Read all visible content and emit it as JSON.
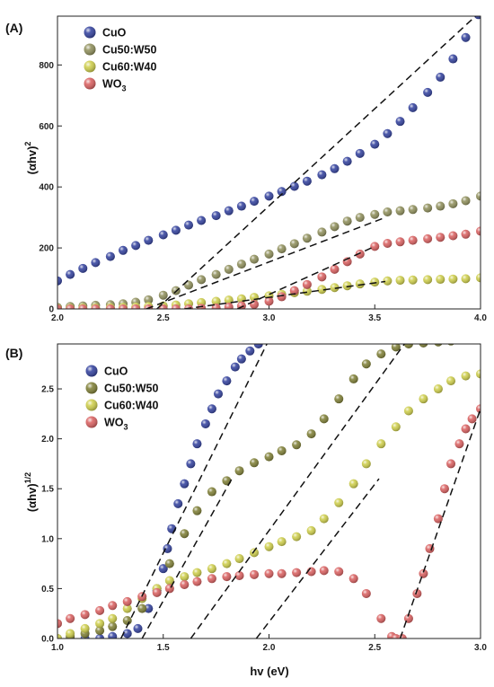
{
  "chart_data": [
    {
      "type": "scatter",
      "panel_label": "(A)",
      "xlabel": "",
      "ylabel": "(αhv)",
      "ylabel_sup": "2",
      "xlim": [
        2.0,
        4.0
      ],
      "ylim": [
        0,
        960
      ],
      "xticks": [
        2.0,
        2.5,
        3.0,
        3.5,
        4.0
      ],
      "yticks": [
        0,
        200,
        400,
        600,
        800
      ],
      "legend_position": "top-left",
      "series": [
        {
          "name": "CuO",
          "color": "#2b3a9a",
          "x": [
            2.0,
            2.06,
            2.12,
            2.18,
            2.25,
            2.31,
            2.37,
            2.43,
            2.5,
            2.56,
            2.62,
            2.68,
            2.75,
            2.81,
            2.87,
            2.93,
            3.0,
            3.06,
            3.12,
            3.18,
            3.25,
            3.31,
            3.37,
            3.43,
            3.5,
            3.56,
            3.62,
            3.68,
            3.75,
            3.81,
            3.87,
            3.93,
            3.99
          ],
          "y": [
            92,
            113,
            133,
            152,
            172,
            192,
            208,
            225,
            243,
            258,
            275,
            290,
            306,
            322,
            337,
            353,
            370,
            385,
            402,
            419,
            440,
            460,
            484,
            510,
            540,
            575,
            615,
            660,
            710,
            760,
            820,
            890,
            965
          ]
        },
        {
          "name": "Cu50:W50",
          "color": "#8b8b55",
          "x": [
            2.0,
            2.06,
            2.12,
            2.18,
            2.25,
            2.31,
            2.37,
            2.43,
            2.5,
            2.56,
            2.62,
            2.68,
            2.75,
            2.81,
            2.87,
            2.93,
            3.0,
            3.06,
            3.12,
            3.18,
            3.25,
            3.31,
            3.37,
            3.43,
            3.5,
            3.56,
            3.62,
            3.68,
            3.75,
            3.81,
            3.87,
            3.93,
            4.0
          ],
          "y": [
            5,
            8,
            10,
            12,
            14,
            17,
            22,
            30,
            45,
            60,
            78,
            96,
            113,
            130,
            147,
            163,
            180,
            197,
            214,
            232,
            252,
            270,
            288,
            300,
            310,
            318,
            322,
            326,
            331,
            337,
            345,
            355,
            370
          ]
        },
        {
          "name": "Cu60:W40",
          "color": "#cccc44",
          "x": [
            2.0,
            2.06,
            2.12,
            2.18,
            2.25,
            2.31,
            2.37,
            2.43,
            2.5,
            2.56,
            2.62,
            2.68,
            2.75,
            2.81,
            2.87,
            2.93,
            3.0,
            3.06,
            3.12,
            3.18,
            3.25,
            3.31,
            3.37,
            3.43,
            3.5,
            3.56,
            3.62,
            3.68,
            3.75,
            3.81,
            3.87,
            3.93,
            4.0
          ],
          "y": [
            2,
            2,
            3,
            3,
            4,
            5,
            6,
            8,
            10,
            13,
            17,
            21,
            25,
            29,
            33,
            38,
            43,
            48,
            53,
            58,
            64,
            70,
            76,
            82,
            88,
            92,
            94,
            95,
            96,
            97,
            98,
            99,
            102
          ]
        },
        {
          "name": "WO3",
          "color": "#d85a5a",
          "x": [
            2.0,
            2.06,
            2.12,
            2.18,
            2.25,
            2.31,
            2.37,
            2.43,
            2.5,
            2.56,
            2.62,
            2.68,
            2.75,
            2.81,
            2.87,
            2.93,
            3.0,
            3.06,
            3.12,
            3.18,
            3.25,
            3.31,
            3.37,
            3.43,
            3.5,
            3.56,
            3.62,
            3.68,
            3.75,
            3.81,
            3.87,
            3.93,
            4.0
          ],
          "y": [
            0,
            0,
            0,
            0,
            0,
            0,
            0,
            0,
            0,
            0,
            0,
            2,
            3,
            6,
            10,
            15,
            25,
            40,
            60,
            80,
            105,
            130,
            155,
            180,
            205,
            215,
            220,
            225,
            230,
            235,
            240,
            245,
            255
          ]
        }
      ],
      "fit_lines": [
        {
          "x": [
            2.47,
            4.0
          ],
          "y": [
            0,
            975
          ]
        },
        {
          "x": [
            2.42,
            3.55
          ],
          "y": [
            0,
            300
          ]
        },
        {
          "x": [
            2.6,
            3.55
          ],
          "y": [
            0,
            90
          ]
        },
        {
          "x": [
            2.85,
            3.5
          ],
          "y": [
            0,
            205
          ]
        }
      ]
    },
    {
      "type": "scatter",
      "panel_label": "(B)",
      "xlabel": "hv (eV)",
      "ylabel": "(αhv)",
      "ylabel_sup": "1/2",
      "xlim": [
        1.0,
        3.0
      ],
      "ylim": [
        0,
        2.95
      ],
      "xticks": [
        1.0,
        1.5,
        2.0,
        2.5,
        3.0
      ],
      "yticks": [
        0.0,
        0.5,
        1.0,
        1.5,
        2.0,
        2.5
      ],
      "legend_position": "top-left",
      "series": [
        {
          "name": "CuO",
          "color": "#2b3a9a",
          "x": [
            1.06,
            1.13,
            1.2,
            1.26,
            1.33,
            1.38,
            1.43,
            1.47,
            1.5,
            1.52,
            1.54,
            1.57,
            1.6,
            1.63,
            1.66,
            1.7,
            1.73,
            1.76,
            1.8,
            1.84,
            1.87,
            1.91,
            1.95
          ],
          "y": [
            0.0,
            0.0,
            0.0,
            0.02,
            0.05,
            0.1,
            0.3,
            0.48,
            0.7,
            0.9,
            1.1,
            1.35,
            1.55,
            1.75,
            1.95,
            2.15,
            2.3,
            2.45,
            2.58,
            2.72,
            2.8,
            2.88,
            2.95
          ]
        },
        {
          "name": "Cu50:W50",
          "color": "#7a7a2e",
          "x": [
            1.0,
            1.06,
            1.13,
            1.2,
            1.26,
            1.33,
            1.4,
            1.47,
            1.53,
            1.6,
            1.66,
            1.73,
            1.8,
            1.86,
            1.93,
            2.0,
            2.06,
            2.13,
            2.2,
            2.26,
            2.33,
            2.4,
            2.46,
            2.53,
            2.6,
            2.66,
            2.73,
            2.8,
            2.86,
            2.93,
            3.0
          ],
          "y": [
            0.0,
            0.02,
            0.05,
            0.08,
            0.12,
            0.18,
            0.3,
            0.5,
            0.75,
            1.05,
            1.28,
            1.47,
            1.58,
            1.68,
            1.76,
            1.82,
            1.88,
            1.94,
            2.05,
            2.2,
            2.4,
            2.6,
            2.75,
            2.85,
            2.92,
            2.95,
            2.96,
            2.97,
            2.98,
            2.99,
            3.0
          ]
        },
        {
          "name": "Cu60:W40",
          "color": "#cccc44",
          "x": [
            1.0,
            1.06,
            1.13,
            1.2,
            1.26,
            1.33,
            1.4,
            1.47,
            1.53,
            1.6,
            1.66,
            1.73,
            1.8,
            1.86,
            1.93,
            2.0,
            2.06,
            2.13,
            2.2,
            2.26,
            2.33,
            2.4,
            2.46,
            2.53,
            2.6,
            2.66,
            2.73,
            2.8,
            2.86,
            2.93,
            3.0
          ],
          "y": [
            0.0,
            0.05,
            0.1,
            0.15,
            0.2,
            0.3,
            0.4,
            0.5,
            0.58,
            0.62,
            0.66,
            0.7,
            0.75,
            0.8,
            0.86,
            0.92,
            0.97,
            1.02,
            1.08,
            1.2,
            1.36,
            1.55,
            1.75,
            1.95,
            2.12,
            2.28,
            2.4,
            2.5,
            2.58,
            2.63,
            2.65
          ]
        },
        {
          "name": "WO3",
          "color": "#d85a5a",
          "x": [
            1.0,
            1.06,
            1.13,
            1.2,
            1.26,
            1.33,
            1.4,
            1.47,
            1.53,
            1.6,
            1.66,
            1.73,
            1.8,
            1.86,
            1.93,
            2.0,
            2.06,
            2.13,
            2.2,
            2.26,
            2.33,
            2.4,
            2.46,
            2.53,
            2.58,
            2.6,
            2.63,
            2.66,
            2.7,
            2.73,
            2.76,
            2.8,
            2.83,
            2.86,
            2.9,
            2.93,
            2.96,
            3.0
          ],
          "y": [
            0.15,
            0.2,
            0.24,
            0.28,
            0.33,
            0.37,
            0.42,
            0.46,
            0.5,
            0.54,
            0.57,
            0.6,
            0.62,
            0.63,
            0.64,
            0.65,
            0.65,
            0.66,
            0.67,
            0.68,
            0.67,
            0.6,
            0.45,
            0.2,
            0.02,
            0.0,
            0.0,
            0.2,
            0.45,
            0.65,
            0.9,
            1.2,
            1.5,
            1.75,
            1.95,
            2.1,
            2.2,
            2.3
          ]
        }
      ],
      "fit_lines": [
        {
          "x": [
            1.3,
            1.99
          ],
          "y": [
            0,
            2.95
          ]
        },
        {
          "x": [
            1.4,
            1.83
          ],
          "y": [
            0,
            1.62
          ]
        },
        {
          "x": [
            1.63,
            2.64
          ],
          "y": [
            0,
            2.95
          ]
        },
        {
          "x": [
            1.94,
            2.52
          ],
          "y": [
            0,
            1.6
          ]
        },
        {
          "x": [
            2.62,
            3.0
          ],
          "y": [
            0,
            2.3
          ]
        }
      ]
    }
  ]
}
